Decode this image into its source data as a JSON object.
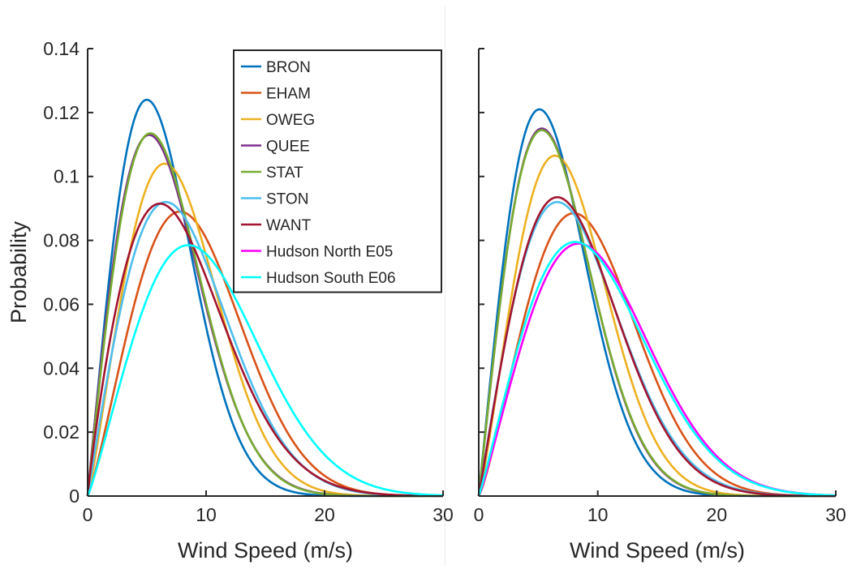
{
  "chart_data": [
    {
      "type": "line",
      "panel": "left",
      "xlabel": "Wind Speed (m/s)",
      "ylabel": "Probability",
      "xlim": [
        0,
        30
      ],
      "ylim": [
        0,
        0.14
      ],
      "xticks": [
        0,
        10,
        20,
        30
      ],
      "xtick_labels": [
        "0",
        "10",
        "20",
        "30"
      ],
      "yticks": [
        0,
        0.02,
        0.04,
        0.06,
        0.08,
        0.1,
        0.12,
        0.14
      ],
      "ytick_labels": [
        "0",
        "0.02",
        "0.04",
        "0.06",
        "0.08",
        "0.1",
        "0.12",
        "0.14"
      ],
      "grid": false,
      "legend": "inside-top-right",
      "distribution": "weibull",
      "series": [
        {
          "name": "BRON",
          "color": "#0072BD",
          "mode_x": 5.0,
          "peak": 0.124
        },
        {
          "name": "EHAM",
          "color": "#D95319",
          "mode_x": 7.8,
          "peak": 0.089
        },
        {
          "name": "OWEG",
          "color": "#EDB120",
          "mode_x": 6.5,
          "peak": 0.104
        },
        {
          "name": "QUEE",
          "color": "#7E2F8E",
          "mode_x": 5.2,
          "peak": 0.113
        },
        {
          "name": "STAT",
          "color": "#77AC30",
          "mode_x": 5.3,
          "peak": 0.1135
        },
        {
          "name": "STON",
          "color": "#4DBEEE",
          "mode_x": 6.6,
          "peak": 0.092
        },
        {
          "name": "WANT",
          "color": "#A2142F",
          "mode_x": 6.1,
          "peak": 0.0915
        },
        {
          "name": "Hudson North E05",
          "color": "#FF00FF",
          "mode_x": null,
          "peak": null
        },
        {
          "name": "Hudson South E06",
          "color": "#00FFFF",
          "mode_x": 8.5,
          "peak": 0.0785
        }
      ]
    },
    {
      "type": "line",
      "panel": "right",
      "xlabel": "Wind Speed (m/s)",
      "ylabel": "",
      "xlim": [
        0,
        30
      ],
      "ylim": [
        0,
        0.14
      ],
      "xticks": [
        0,
        10,
        20,
        30
      ],
      "xtick_labels": [
        "0",
        "10",
        "20",
        "30"
      ],
      "yticks": [
        0,
        0.02,
        0.04,
        0.06,
        0.08,
        0.1,
        0.12,
        0.14
      ],
      "ytick_labels": [],
      "grid": false,
      "distribution": "weibull",
      "series": [
        {
          "name": "BRON",
          "color": "#0072BD",
          "mode_x": 5.1,
          "peak": 0.121
        },
        {
          "name": "EHAM",
          "color": "#D95319",
          "mode_x": 8.0,
          "peak": 0.0885
        },
        {
          "name": "OWEG",
          "color": "#EDB120",
          "mode_x": 6.4,
          "peak": 0.1065
        },
        {
          "name": "QUEE",
          "color": "#7E2F8E",
          "mode_x": 5.3,
          "peak": 0.115
        },
        {
          "name": "STAT",
          "color": "#77AC30",
          "mode_x": 5.3,
          "peak": 0.1145
        },
        {
          "name": "STON",
          "color": "#4DBEEE",
          "mode_x": 6.6,
          "peak": 0.092
        },
        {
          "name": "WANT",
          "color": "#A2142F",
          "mode_x": 6.6,
          "peak": 0.0935
        },
        {
          "name": "Hudson North E05",
          "color": "#FF00FF",
          "mode_x": 8.4,
          "peak": 0.079
        },
        {
          "name": "Hudson South E06",
          "color": "#00FFFF",
          "mode_x": 8.1,
          "peak": 0.0795
        }
      ]
    }
  ]
}
